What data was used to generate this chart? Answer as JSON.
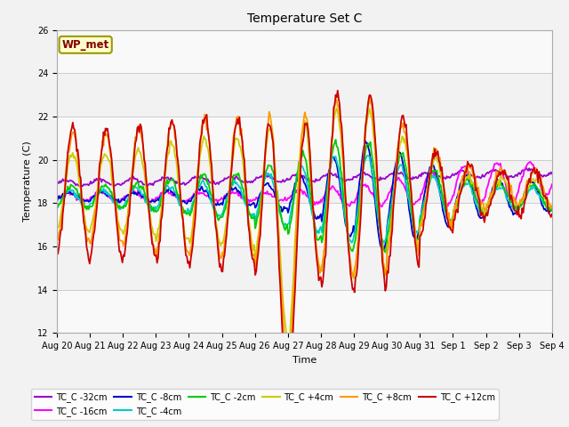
{
  "title": "Temperature Set C",
  "xlabel": "Time",
  "ylabel": "Temperature (C)",
  "ylim": [
    12,
    26
  ],
  "yticks": [
    12,
    14,
    16,
    18,
    20,
    22,
    24,
    26
  ],
  "wp_met_label": "WP_met",
  "series": [
    {
      "label": "TC_C -32cm",
      "color": "#9900cc"
    },
    {
      "label": "TC_C -16cm",
      "color": "#ff00ff"
    },
    {
      "label": "TC_C -8cm",
      "color": "#0000cc"
    },
    {
      "label": "TC_C -4cm",
      "color": "#00cccc"
    },
    {
      "label": "TC_C -2cm",
      "color": "#00cc00"
    },
    {
      "label": "TC_C +4cm",
      "color": "#cccc00"
    },
    {
      "label": "TC_C +8cm",
      "color": "#ff9900"
    },
    {
      "label": "TC_C +12cm",
      "color": "#cc0000"
    }
  ],
  "x_tick_labels": [
    "Aug 20",
    "Aug 21",
    "Aug 22",
    "Aug 23",
    "Aug 24",
    "Aug 25",
    "Aug 26",
    "Aug 27",
    "Aug 28",
    "Aug 29",
    "Aug 30",
    "Aug 31",
    "Sep 1",
    "Sep 2",
    "Sep 3",
    "Sep 4"
  ]
}
